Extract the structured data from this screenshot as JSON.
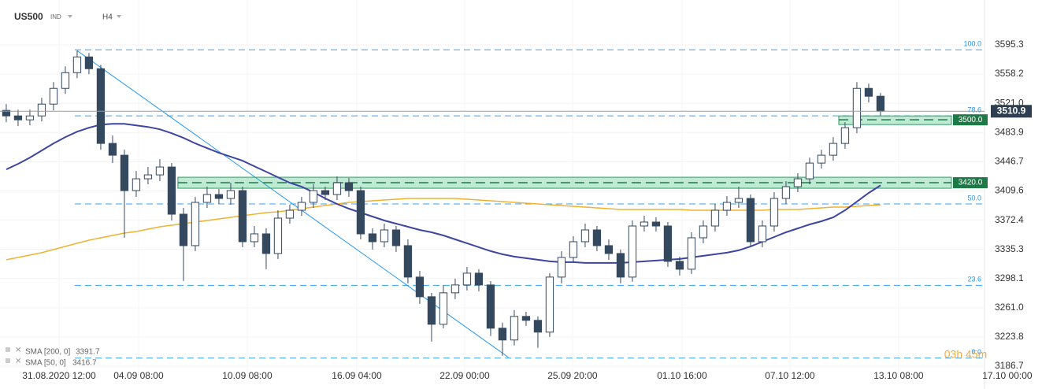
{
  "chart_data": {
    "type": "candlestick",
    "symbol": "US500",
    "instrument_type": "IND",
    "timeframe": "H4",
    "ylim": [
      3171.7,
      3652.4
    ],
    "yticks": [
      3186.7,
      3223.8,
      {
        "value": 3261.0,
        "label": "3261.0"
      },
      3298.1,
      3335.3,
      3372.4,
      3409.6,
      3446.7,
      3483.9,
      {
        "value": 3521.0,
        "label": "3521.0"
      },
      3558.2,
      3595.3
    ],
    "xlim": [
      -0.53,
      87.67
    ],
    "xticks": [
      {
        "value": 4.47,
        "label": "31.08.2020 12:00"
      },
      {
        "value": 11.2,
        "label": "04.09 08:00"
      },
      {
        "value": 20.4,
        "label": "10.09 08:00"
      },
      {
        "value": 29.67,
        "label": "16.09 04:00"
      },
      {
        "value": 38.8,
        "label": "22.09 00:00"
      },
      {
        "value": 47.93,
        "label": "25.09 20:00"
      },
      {
        "value": 57.2,
        "label": "01.10 16:00"
      },
      {
        "value": 66.33,
        "label": "07.10 12:00"
      },
      {
        "value": 75.53,
        "label": "13.10 08:00"
      },
      {
        "value": 84.73,
        "label": "17.10 00:00"
      }
    ],
    "grid": true,
    "up_color": "#ffffff",
    "down_color": "#34495e",
    "open": [
      3512,
      3505,
      3500,
      3505,
      3520,
      3540,
      3560,
      3580,
      3565,
      3470,
      3455,
      3410,
      3425,
      3430,
      3440,
      3380,
      3340,
      3395,
      3405,
      3400,
      3410,
      3345,
      3355,
      3330,
      3375,
      3385,
      3395,
      3410,
      3405,
      3420,
      3410,
      3355,
      3345,
      3360,
      3340,
      3300,
      3275,
      3240,
      3280,
      3290,
      3305,
      3290,
      3235,
      3220,
      3250,
      3245,
      3230,
      3300,
      3325,
      3345,
      3360,
      3340,
      3330,
      3300,
      3365,
      3370,
      3365,
      3320,
      3310,
      3350,
      3365,
      3385,
      3395,
      3400,
      3345,
      3365,
      3400,
      3415,
      3425,
      3445,
      3455,
      3470,
      3490,
      3540,
      3530
    ],
    "high": [
      3520,
      3513,
      3513,
      3528,
      3548,
      3568,
      3588,
      3585,
      3570,
      3480,
      3462,
      3435,
      3440,
      3450,
      3445,
      3388,
      3402,
      3415,
      3412,
      3420,
      3415,
      3365,
      3362,
      3385,
      3392,
      3402,
      3418,
      3415,
      3428,
      3426,
      3415,
      3362,
      3368,
      3365,
      3348,
      3308,
      3280,
      3290,
      3298,
      3313,
      3310,
      3295,
      3242,
      3258,
      3256,
      3250,
      3305,
      3333,
      3352,
      3368,
      3365,
      3348,
      3335,
      3372,
      3378,
      3376,
      3370,
      3326,
      3357,
      3372,
      3393,
      3403,
      3415,
      3405,
      3372,
      3408,
      3422,
      3432,
      3452,
      3462,
      3478,
      3497,
      3548,
      3546,
      3534
    ],
    "low": [
      3497,
      3492,
      3493,
      3498,
      3512,
      3533,
      3553,
      3558,
      3462,
      3445,
      3350,
      3402,
      3418,
      3422,
      3372,
      3295,
      3333,
      3388,
      3393,
      3392,
      3338,
      3338,
      3310,
      3323,
      3368,
      3378,
      3388,
      3398,
      3398,
      3402,
      3348,
      3335,
      3338,
      3332,
      3292,
      3266,
      3218,
      3235,
      3272,
      3283,
      3282,
      3225,
      3200,
      3213,
      3238,
      3210,
      3224,
      3292,
      3318,
      3338,
      3333,
      3322,
      3292,
      3294,
      3358,
      3358,
      3313,
      3302,
      3304,
      3343,
      3358,
      3378,
      3388,
      3338,
      3338,
      3358,
      3393,
      3408,
      3418,
      3438,
      3448,
      3463,
      3483,
      3522,
      3505
    ],
    "close": [
      3505,
      3500,
      3505,
      3520,
      3540,
      3560,
      3580,
      3565,
      3470,
      3455,
      3410,
      3425,
      3430,
      3440,
      3380,
      3340,
      3395,
      3405,
      3400,
      3410,
      3345,
      3355,
      3330,
      3375,
      3385,
      3395,
      3410,
      3405,
      3420,
      3410,
      3355,
      3345,
      3360,
      3340,
      3300,
      3275,
      3240,
      3280,
      3290,
      3305,
      3290,
      3235,
      3220,
      3250,
      3245,
      3230,
      3300,
      3325,
      3345,
      3360,
      3340,
      3330,
      3300,
      3365,
      3370,
      3365,
      3320,
      3310,
      3350,
      3365,
      3385,
      3395,
      3400,
      3345,
      3365,
      3400,
      3415,
      3425,
      3445,
      3455,
      3470,
      3490,
      3540,
      3530,
      3510.9
    ],
    "series": [
      {
        "name": "SMA [200, 0]",
        "color": "#f0b232",
        "values": [
          3322,
          3325,
          3328,
          3331,
          3335,
          3339,
          3343,
          3347,
          3350,
          3353,
          3356,
          3358,
          3361,
          3364,
          3366,
          3368,
          3370,
          3372,
          3374,
          3376,
          3378,
          3380,
          3382,
          3383,
          3385,
          3387,
          3389,
          3391,
          3393,
          3395,
          3396,
          3397,
          3398,
          3399,
          3400,
          3400,
          3400,
          3400,
          3400,
          3399,
          3398,
          3397,
          3396,
          3395,
          3394,
          3393,
          3392,
          3391,
          3390,
          3389,
          3388,
          3387,
          3386,
          3386,
          3386,
          3386,
          3386,
          3386,
          3385,
          3385,
          3385,
          3385,
          3385,
          3385,
          3385,
          3386,
          3386,
          3386,
          3387,
          3388,
          3389,
          3389,
          3390,
          3391,
          3391.7
        ]
      },
      {
        "name": "SMA [50, 0]",
        "color": "#3d45a3",
        "values": [
          3437,
          3444,
          3452,
          3461,
          3470,
          3478,
          3485,
          3490,
          3494,
          3495,
          3495,
          3493,
          3491,
          3488,
          3483,
          3477,
          3470,
          3464,
          3458,
          3453,
          3448,
          3441,
          3434,
          3427,
          3420,
          3415,
          3408,
          3400,
          3393,
          3387,
          3382,
          3377,
          3372,
          3368,
          3364,
          3360,
          3357,
          3353,
          3348,
          3343,
          3338,
          3333,
          3329,
          3326,
          3324,
          3322,
          3320,
          3319,
          3319,
          3318,
          3318,
          3318,
          3318,
          3319,
          3320,
          3321,
          3322,
          3323,
          3325,
          3327,
          3329,
          3331,
          3334,
          3339,
          3345,
          3351,
          3357,
          3362,
          3367,
          3371,
          3376,
          3385,
          3396,
          3407,
          3416.7
        ]
      }
    ],
    "zones": [
      {
        "value": 3420,
        "label": "3420.0",
        "upper": 3427,
        "lower": 3413,
        "start": 14.53,
        "end": 80
      },
      {
        "value": 3500,
        "label": "3500.0",
        "upper": 3505,
        "lower": 3494,
        "start": 70.47,
        "end": 80
      }
    ],
    "fibonacci": {
      "start": 5.8,
      "color": "#2196f3",
      "levels": [
        {
          "label": "100.0",
          "value": 3589
        },
        {
          "label": "78.6",
          "value": 3505
        },
        {
          "label": "50.0",
          "value": 3393
        },
        {
          "label": "23.6",
          "value": 3289.5
        },
        {
          "label": "0.0",
          "value": 3197
        }
      ]
    },
    "trendline": {
      "color": "#2196f3",
      "start": [
        6,
        3588
      ],
      "end": [
        42.5,
        3198
      ]
    },
    "countdown": "03h 45m"
  }
}
